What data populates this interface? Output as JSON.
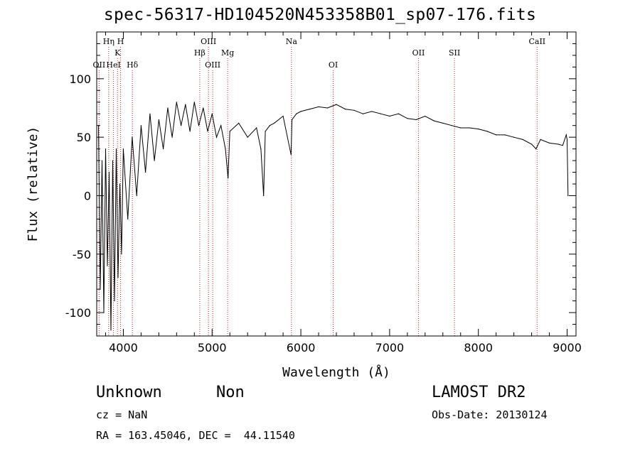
{
  "chart_data": {
    "type": "line",
    "title": "spec-56317-HD104520N453358B01_sp07-176.fits",
    "xlabel": "Wavelength (Å)",
    "ylabel": "Flux (relative)",
    "xlim": [
      3700,
      9100
    ],
    "ylim": [
      -120,
      140
    ],
    "xticks": [
      4000,
      5000,
      6000,
      7000,
      8000,
      9000
    ],
    "yticks": [
      -100,
      -50,
      0,
      50,
      100
    ],
    "grid": false,
    "line_color": "#000000",
    "marker_color": "#b22222",
    "series": [
      {
        "x": [
          3720,
          3740,
          3760,
          3780,
          3800,
          3820,
          3840,
          3860,
          3880,
          3900,
          3920,
          3940,
          3960,
          3980,
          4000,
          4050,
          4100,
          4150,
          4200,
          4250,
          4300,
          4350,
          4400,
          4450,
          4500,
          4550,
          4600,
          4650,
          4700,
          4750,
          4800,
          4850,
          4900,
          4950,
          5000,
          5050,
          5100,
          5150,
          5180,
          5200,
          5300,
          5400,
          5500,
          5550,
          5580,
          5600,
          5650,
          5700,
          5800,
          5890,
          5900,
          5950,
          6000,
          6100,
          6200,
          6300,
          6400,
          6500,
          6600,
          6700,
          6800,
          6900,
          7000,
          7100,
          7200,
          7300,
          7400,
          7500,
          7600,
          7700,
          7800,
          7900,
          8000,
          8100,
          8200,
          8300,
          8400,
          8500,
          8600,
          8650,
          8700,
          8800,
          8900,
          8950,
          8990,
          9000,
          9010
        ],
        "y": [
          60,
          -80,
          30,
          -100,
          40,
          -60,
          20,
          -115,
          30,
          -90,
          40,
          -70,
          10,
          -50,
          40,
          -20,
          50,
          0,
          60,
          20,
          70,
          30,
          65,
          40,
          75,
          50,
          80,
          60,
          78,
          55,
          80,
          60,
          75,
          55,
          70,
          50,
          60,
          40,
          15,
          55,
          62,
          50,
          58,
          40,
          0,
          55,
          60,
          62,
          68,
          35,
          65,
          70,
          72,
          74,
          76,
          75,
          78,
          74,
          73,
          70,
          72,
          70,
          68,
          70,
          66,
          65,
          68,
          64,
          62,
          60,
          58,
          58,
          57,
          55,
          52,
          52,
          50,
          48,
          44,
          40,
          48,
          45,
          44,
          43,
          52,
          48,
          0
        ]
      }
    ],
    "lines": [
      {
        "label": "OII",
        "x": 3727,
        "row": 3
      },
      {
        "label": "Hη",
        "x": 3835,
        "row": 1
      },
      {
        "label": "HeI",
        "x": 3889,
        "row": 3
      },
      {
        "label": "K",
        "x": 3934,
        "row": 2
      },
      {
        "label": "H",
        "x": 3969,
        "row": 1
      },
      {
        "label": "Hδ",
        "x": 4102,
        "row": 3
      },
      {
        "label": "Hβ",
        "x": 4861,
        "row": 2
      },
      {
        "label": "OIII",
        "x": 4959,
        "row": 1
      },
      {
        "label": "OIII",
        "x": 5007,
        "row": 3
      },
      {
        "label": "Mg",
        "x": 5175,
        "row": 2
      },
      {
        "label": "Na",
        "x": 5894,
        "row": 1
      },
      {
        "label": "OI",
        "x": 6364,
        "row": 3
      },
      {
        "label": "OII",
        "x": 7325,
        "row": 2
      },
      {
        "label": "SII",
        "x": 7731,
        "row": 2
      },
      {
        "label": "CaII",
        "x": 8662,
        "row": 1
      }
    ]
  },
  "info": {
    "object_class": "Unknown",
    "object_subclass": "Non",
    "cz": "cz = NaN",
    "coords": "RA = 163.45046, DEC =  44.11540",
    "survey": "LAMOST DR2",
    "obs_date": "Obs-Date: 20130124"
  }
}
